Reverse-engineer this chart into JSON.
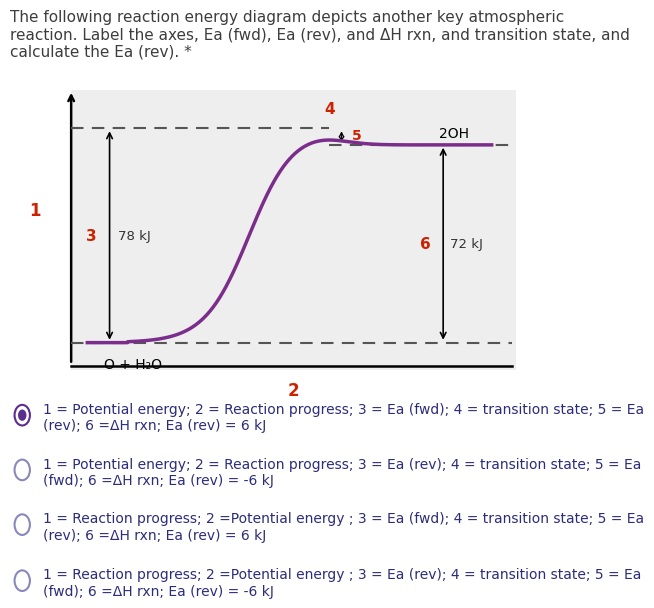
{
  "title_text": "The following reaction energy diagram depicts another key atmospheric\nreaction. Label the axes, Ea (fwd), Ea (rev), and ΔH rxn, and transition state, and\ncalculate the Ea (rev). *",
  "title_color": "#3d3d3d",
  "title_fontsize": 11.0,
  "bg_color": "#eeeeee",
  "curve_color": "#7b2d8b",
  "reactant_label": "O + H₂O",
  "product_label": "2OH",
  "reactant_energy": 0.0,
  "product_energy": 0.72,
  "peak_energy": 0.78,
  "label_3": "3",
  "label_4": "4",
  "label_5": "5",
  "label_6": "6",
  "label_1": "1",
  "label_2": "2",
  "text_78": "78 kJ",
  "text_72": "72 kJ",
  "label_color": "#cc2200",
  "dashed_color": "#555555",
  "option1": "1 = Potential energy; 2 = Reaction progress; 3 = Ea (fwd); 4 = transition state; 5 = Ea\n(rev); 6 =ΔH rxn; Ea (rev) = 6 kJ",
  "option2": "1 = Potential energy; 2 = Reaction progress; 3 = Ea (rev); 4 = transition state; 5 = Ea\n(fwd); 6 =ΔH rxn; Ea (rev) = -6 kJ",
  "option3": "1 = Reaction progress; 2 =Potential energy ; 3 = Ea (fwd); 4 = transition state; 5 = Ea\n(rev); 6 =ΔH rxn; Ea (rev) = 6 kJ",
  "option4": "1 = Reaction progress; 2 =Potential energy ; 3 = Ea (rev); 4 = transition state; 5 = Ea\n(fwd); 6 =ΔH rxn; Ea (rev) = -6 kJ",
  "selected_option": 0,
  "option_fontsize": 10,
  "option_color": "#2c2c7c"
}
